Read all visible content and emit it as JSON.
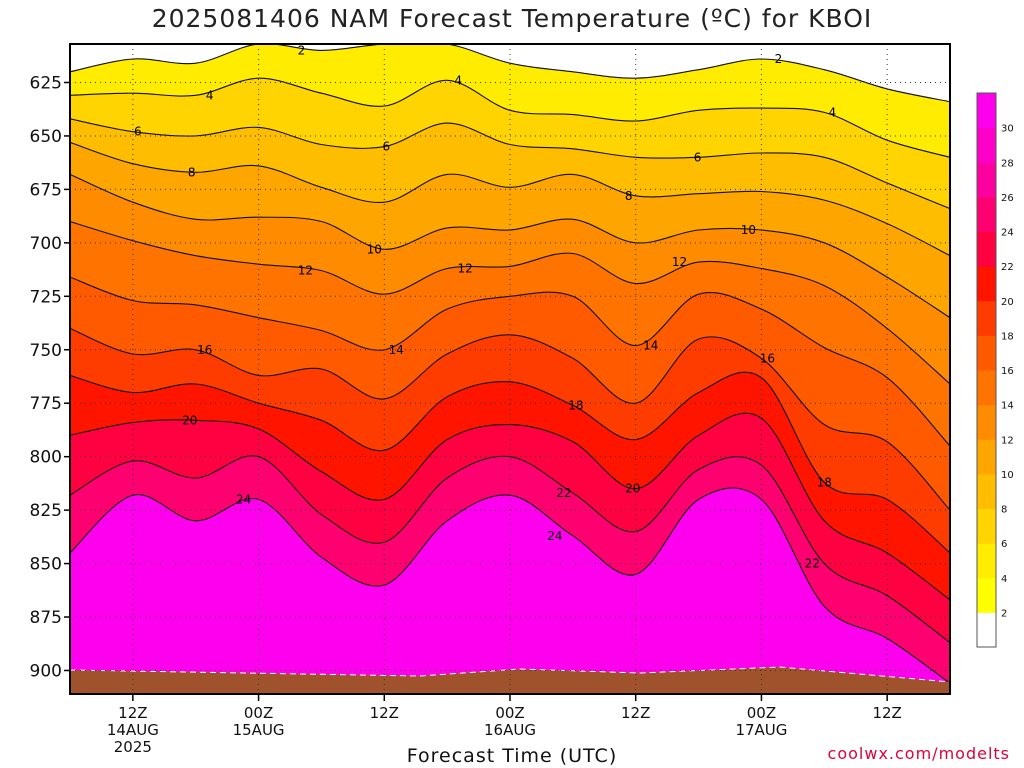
{
  "title": "2025081406 NAM Forecast Temperature (ºC) for KBOI",
  "xlabel": "Forecast Time (UTC)",
  "credit": "coolwx.com/modelts",
  "chart_data": {
    "type": "heatmap",
    "title": "2025081406 NAM Forecast Temperature (ºC) for KBOI",
    "xlabel": "Forecast Time (UTC)",
    "ylabel": "",
    "y_axis": {
      "ticks": [
        625,
        650,
        675,
        700,
        725,
        750,
        775,
        800,
        825,
        850,
        875,
        900
      ],
      "range_hpa": [
        607,
        911
      ],
      "inverted": true
    },
    "x_axis": {
      "range": [
        "2025-08-14 06Z",
        "2025-08-17 18Z"
      ],
      "ticks": [
        {
          "time": "2025-08-14 12Z",
          "label": "12Z",
          "date": "14AUG",
          "year": "2025"
        },
        {
          "time": "2025-08-15 00Z",
          "label": "00Z",
          "date": "15AUG",
          "year": ""
        },
        {
          "time": "2025-08-15 12Z",
          "label": "12Z",
          "date": "",
          "year": ""
        },
        {
          "time": "2025-08-16 00Z",
          "label": "00Z",
          "date": "16AUG",
          "year": ""
        },
        {
          "time": "2025-08-16 12Z",
          "label": "12Z",
          "date": "",
          "year": ""
        },
        {
          "time": "2025-08-17 00Z",
          "label": "00Z",
          "date": "17AUG",
          "year": ""
        },
        {
          "time": "2025-08-17 12Z",
          "label": "12Z",
          "date": "",
          "year": ""
        }
      ]
    },
    "grid": true,
    "colorbar": {
      "placement": "right",
      "labels": [
        2,
        4,
        6,
        8,
        10,
        12,
        14,
        16,
        18,
        20,
        22,
        24,
        26,
        28,
        30
      ],
      "colors": [
        "#ffffff",
        "#ffff00",
        "#ffec00",
        "#ffd400",
        "#ffbd00",
        "#ffa500",
        "#ff8c00",
        "#ff7300",
        "#ff5a00",
        "#ff3c00",
        "#ff1400",
        "#ff0040",
        "#ff0070",
        "#ff00a0",
        "#ff00c8",
        "#ff00ee"
      ]
    },
    "contour_levels": [
      2,
      4,
      6,
      8,
      10,
      12,
      14,
      16,
      18,
      20,
      22,
      24
    ],
    "contour_labels": [
      "2",
      "2",
      "4",
      "4",
      "4",
      "6",
      "6",
      "6",
      "8",
      "8",
      "10",
      "10",
      "12",
      "12",
      "12",
      "14",
      "14",
      "16",
      "16",
      "18",
      "18",
      "20",
      "20",
      "22",
      "22",
      "24",
      "24"
    ],
    "columns": [
      {
        "time": "14AUG 06Z",
        "isotherms_hpa": [
          620,
          631,
          642,
          653,
          668,
          690,
          716,
          740,
          762,
          790,
          818,
          845
        ]
      },
      {
        "time": "14AUG 12Z",
        "isotherms_hpa": [
          614,
          630,
          648,
          663,
          681,
          699,
          727,
          752,
          770,
          784,
          802,
          818
        ]
      },
      {
        "time": "14AUG 18Z",
        "isotherms_hpa": [
          616,
          631,
          650,
          667,
          689,
          706,
          729,
          750,
          766,
          783,
          810,
          830
        ]
      },
      {
        "time": "15AUG 00Z",
        "isotherms_hpa": [
          607,
          623,
          646,
          664,
          688,
          710,
          735,
          762,
          775,
          787,
          800,
          820
        ]
      },
      {
        "time": "15AUG 06Z",
        "isotherms_hpa": [
          610,
          630,
          654,
          674,
          690,
          713,
          741,
          759,
          783,
          807,
          827,
          847
        ]
      },
      {
        "time": "15AUG 12Z",
        "isotherms_hpa": [
          607,
          636,
          655,
          681,
          703,
          724,
          750,
          773,
          797,
          820,
          840,
          860
        ]
      },
      {
        "time": "15AUG 18Z",
        "isotherms_hpa": [
          607,
          624,
          644,
          668,
          693,
          712,
          731,
          752,
          772,
          792,
          810,
          830
        ]
      },
      {
        "time": "16AUG 00Z",
        "isotherms_hpa": [
          616,
          638,
          654,
          674,
          694,
          711,
          725,
          743,
          765,
          785,
          800,
          818
        ]
      },
      {
        "time": "16AUG 06Z",
        "isotherms_hpa": [
          620,
          640,
          656,
          668,
          689,
          705,
          725,
          754,
          776,
          793,
          817,
          837
        ]
      },
      {
        "time": "16AUG 12Z",
        "isotherms_hpa": [
          623,
          643,
          660,
          678,
          700,
          719,
          748,
          775,
          792,
          815,
          835,
          855
        ]
      },
      {
        "time": "16AUG 18Z",
        "isotherms_hpa": [
          619,
          638,
          660,
          677,
          694,
          709,
          724,
          745,
          770,
          790,
          806,
          820
        ]
      },
      {
        "time": "17AUG 00Z",
        "isotherms_hpa": [
          614,
          637,
          658,
          676,
          694,
          712,
          731,
          754,
          763,
          782,
          804,
          820
        ]
      },
      {
        "time": "17AUG 06Z",
        "isotherms_hpa": [
          619,
          639,
          660,
          680,
          700,
          720,
          749,
          785,
          812,
          830,
          850,
          870
        ]
      },
      {
        "time": "17AUG 12Z",
        "isotherms_hpa": [
          628,
          652,
          672,
          691,
          716,
          740,
          763,
          793,
          820,
          845,
          865,
          885
        ]
      },
      {
        "time": "17AUG 18Z",
        "isotherms_hpa": [
          634,
          660,
          684,
          706,
          735,
          766,
          795,
          825,
          845,
          867,
          887,
          906
        ]
      }
    ]
  }
}
